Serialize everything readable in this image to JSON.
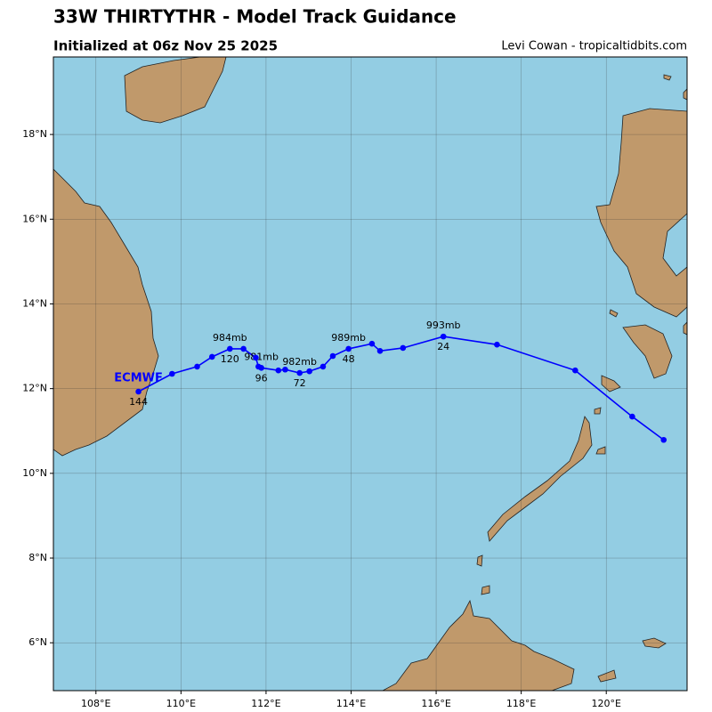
{
  "map_data": {
    "title": "33W THIRTYTHR - Model Track Guidance",
    "subtitle": "Initialized at 06z Nov 25 2025",
    "credit": "Levi Cowan - tropicaltidbits.com",
    "lonlim": [
      107,
      121.9
    ],
    "latlim": [
      4.87,
      19.83
    ],
    "lon_ticks": [
      {
        "value": 108,
        "label": "108°E"
      },
      {
        "value": 110,
        "label": "110°E"
      },
      {
        "value": 112,
        "label": "112°E"
      },
      {
        "value": 114,
        "label": "114°E"
      },
      {
        "value": 116,
        "label": "116°E"
      },
      {
        "value": 118,
        "label": "118°E"
      },
      {
        "value": 120,
        "label": "120°E"
      }
    ],
    "lat_ticks": [
      {
        "value": 6,
        "label": "6°N"
      },
      {
        "value": 8,
        "label": "8°N"
      },
      {
        "value": 10,
        "label": "10°N"
      },
      {
        "value": 12,
        "label": "12°N"
      },
      {
        "value": 14,
        "label": "14°N"
      },
      {
        "value": 16,
        "label": "16°N"
      },
      {
        "value": 18,
        "label": "18°N"
      }
    ],
    "track": {
      "model": "ECMWF",
      "color": "#0000ff",
      "points": [
        {
          "lon": 121.35,
          "lat": 10.79
        },
        {
          "lon": 120.61,
          "lat": 11.34
        },
        {
          "lon": 119.27,
          "lat": 12.43
        },
        {
          "lon": 117.43,
          "lat": 13.04
        },
        {
          "lon": 116.17,
          "lat": 13.23,
          "pressure": "993mb",
          "hour": 24
        },
        {
          "lon": 115.22,
          "lat": 12.96
        },
        {
          "lon": 114.68,
          "lat": 12.89
        },
        {
          "lon": 114.49,
          "lat": 13.06
        },
        {
          "lon": 113.94,
          "lat": 12.94,
          "pressure": "989mb",
          "hour": 48
        },
        {
          "lon": 113.57,
          "lat": 12.77
        },
        {
          "lon": 113.34,
          "lat": 12.52
        },
        {
          "lon": 113.02,
          "lat": 12.41
        },
        {
          "lon": 112.79,
          "lat": 12.37,
          "pressure": "982mb",
          "hour": 72
        },
        {
          "lon": 112.45,
          "lat": 12.45
        },
        {
          "lon": 112.29,
          "lat": 12.43
        },
        {
          "lon": 111.89,
          "lat": 12.49,
          "pressure": "981mb",
          "hour": 96
        },
        {
          "lon": 111.82,
          "lat": 12.52
        },
        {
          "lon": 111.76,
          "lat": 12.73
        },
        {
          "lon": 111.47,
          "lat": 12.94
        },
        {
          "lon": 111.15,
          "lat": 12.94,
          "pressure": "984mb",
          "hour": 120
        },
        {
          "lon": 110.73,
          "lat": 12.75
        },
        {
          "lon": 110.38,
          "lat": 12.52
        },
        {
          "lon": 109.79,
          "lat": 12.35
        },
        {
          "lon": 109.0,
          "lat": 11.93,
          "hour": 144
        }
      ]
    }
  }
}
